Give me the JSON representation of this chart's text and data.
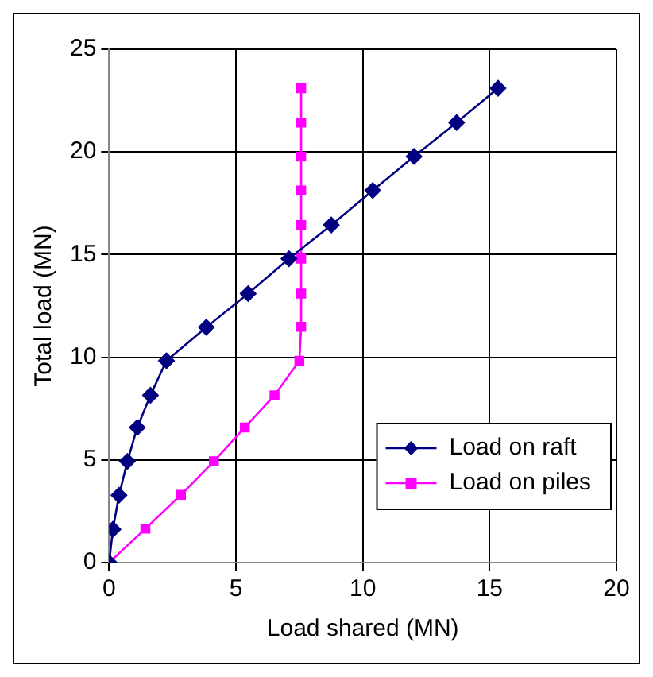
{
  "chart_data": {
    "type": "line",
    "xlabel": "Load shared (MN)",
    "ylabel": "Total load (MN)",
    "xlim": [
      0,
      20
    ],
    "xticks": [
      0,
      5,
      10,
      15,
      20
    ],
    "ylim": [
      0,
      25
    ],
    "yticks": [
      0,
      5,
      10,
      15,
      20,
      25
    ],
    "grid": true,
    "legend": "bottom right",
    "line_style": "solid",
    "series": [
      {
        "name": "Load on raft",
        "color": "#000080",
        "marker": "diamond",
        "x": [
          0,
          0.15,
          0.39,
          0.72,
          1.11,
          1.63,
          2.26,
          3.83,
          5.48,
          7.09,
          8.76,
          10.39,
          12.02,
          13.7,
          15.33
        ],
        "values": [
          0,
          1.62,
          3.28,
          4.93,
          6.58,
          8.15,
          9.83,
          11.46,
          13.1,
          14.8,
          16.44,
          18.12,
          19.78,
          21.43,
          23.1
        ]
      },
      {
        "name": "Load on piles",
        "color": "#ff00ff",
        "marker": "square",
        "x": [
          0,
          1.43,
          2.83,
          4.13,
          5.35,
          6.52,
          7.5,
          7.57,
          7.57,
          7.57,
          7.57,
          7.57,
          7.57,
          7.57,
          7.57
        ],
        "values": [
          0,
          1.65,
          3.3,
          4.93,
          6.58,
          8.15,
          9.83,
          11.48,
          13.1,
          14.8,
          16.44,
          18.12,
          19.78,
          21.43,
          23.1
        ]
      }
    ]
  }
}
